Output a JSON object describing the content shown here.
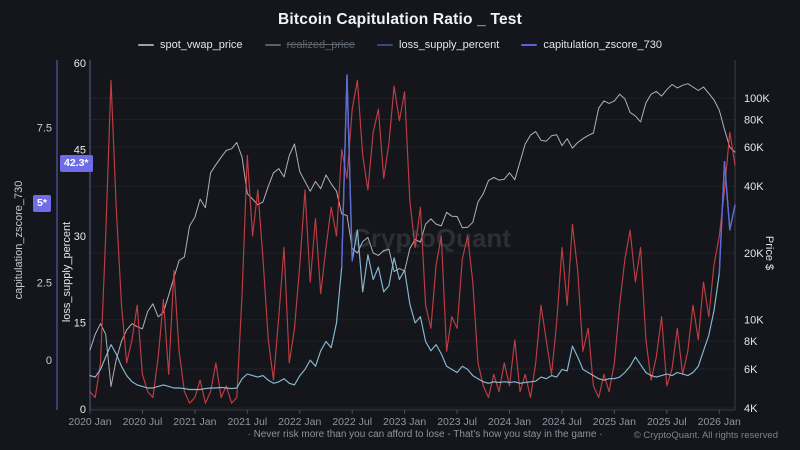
{
  "header": {
    "title": "Bitcoin Capitulation Ratio _ Test"
  },
  "watermark": "CryptoQuant",
  "footer": {
    "quote": "· Never risk more than you can afford to lose - That's how you stay in the game ·",
    "copyright": "© CryptoQuant. All rights reserved"
  },
  "chart_data": {
    "type": "line",
    "title": "Bitcoin Capitulation Ratio _ Test",
    "x_domain": [
      2020.0,
      2026.15
    ],
    "x_start": 2020.0,
    "x_step": 0.05,
    "x_ticks": [
      {
        "v": 2020.0,
        "label": "2020 Jan"
      },
      {
        "v": 2020.5,
        "label": "2020 Jul"
      },
      {
        "v": 2021.0,
        "label": "2021 Jan"
      },
      {
        "v": 2021.5,
        "label": "2021 Jul"
      },
      {
        "v": 2022.0,
        "label": "2022 Jan"
      },
      {
        "v": 2022.5,
        "label": "2022 Jul"
      },
      {
        "v": 2023.0,
        "label": "2023 Jan"
      },
      {
        "v": 2023.5,
        "label": "2023 Jul"
      },
      {
        "v": 2024.0,
        "label": "2024 Jan"
      },
      {
        "v": 2024.5,
        "label": "2024 Jul"
      },
      {
        "v": 2025.0,
        "label": "2025 Jan"
      },
      {
        "v": 2025.5,
        "label": "2025 Jul"
      },
      {
        "v": 2026.0,
        "label": "2026 Jan"
      }
    ],
    "axes": {
      "zscore": {
        "title": "capitulation_zscore_730",
        "side": "left-outer",
        "axis_color": "#565aa8",
        "ticks": [
          {
            "v": 0,
            "label": "0"
          },
          {
            "v": 2.5,
            "label": "2.5"
          },
          {
            "v": 7.5,
            "label": "7.5"
          }
        ],
        "current_value": 5,
        "current_label": "5*"
      },
      "loss": {
        "title": "loss_supply_percent",
        "side": "left-inner",
        "axis_color": "#4a5680",
        "ticks": [
          {
            "v": 0,
            "label": "0"
          },
          {
            "v": 15,
            "label": "15"
          },
          {
            "v": 30,
            "label": "30"
          },
          {
            "v": 45,
            "label": "45"
          },
          {
            "v": 60,
            "label": "60"
          }
        ],
        "current_value": 42.3,
        "current_label": "42.3*"
      },
      "price": {
        "title": "Price $",
        "side": "right",
        "scale": "log",
        "axis_color": "#3a3f48",
        "ticks": [
          {
            "v": 100,
            "label": "100K"
          },
          {
            "v": 80,
            "label": "80K"
          },
          {
            "v": 60,
            "label": "60K"
          },
          {
            "v": 40,
            "label": "40K"
          },
          {
            "v": 20,
            "label": "20K"
          },
          {
            "v": 10,
            "label": "10K"
          },
          {
            "v": 8,
            "label": "8K"
          },
          {
            "v": 6,
            "label": "6K"
          },
          {
            "v": 4,
            "label": "4K"
          }
        ]
      }
    },
    "series": [
      {
        "name": "spot_vwap_price",
        "axis": "price",
        "visible": true,
        "color": "#b4bac2",
        "legend_color": "#9aa1a9",
        "values": [
          7.3,
          8.6,
          9.6,
          8.6,
          5.0,
          6.6,
          8.0,
          9.0,
          9.6,
          9.3,
          9.1,
          10.9,
          11.8,
          10.3,
          10.8,
          12.9,
          15.5,
          18.5,
          19.2,
          26.5,
          29,
          35,
          32,
          46,
          50,
          54,
          58,
          59,
          63,
          54,
          37,
          35,
          33,
          34,
          40,
          46,
          48,
          44,
          55,
          62,
          46.5,
          42,
          38,
          42,
          39,
          45,
          41,
          38,
          30,
          29.5,
          21,
          20,
          22.5,
          23.5,
          20,
          19.5,
          20.5,
          20.8,
          16.5,
          17,
          16.6,
          21,
          23,
          22.4,
          27,
          28.5,
          27,
          26.5,
          30.5,
          29.3,
          29.2,
          26,
          26.1,
          27.5,
          34,
          37,
          42.5,
          43.8,
          42.6,
          43,
          46,
          42.8,
          51.5,
          62,
          68,
          70.5,
          64.5,
          63.8,
          67.5,
          68.3,
          61,
          65.5,
          59.4,
          63,
          65.5,
          67.8,
          69.5,
          90,
          97,
          94.5,
          97,
          104,
          99,
          86,
          83,
          78,
          95,
          104,
          107,
          102,
          109,
          115,
          111,
          114,
          116,
          112,
          108,
          112,
          105,
          98,
          88,
          72,
          60,
          57
        ]
      },
      {
        "name": "realized_price",
        "visible": false,
        "legend_color": "#59616c"
      },
      {
        "name": "loss_supply_percent",
        "axis": "loss",
        "visible": true,
        "color": "#c64046",
        "legend_color": "#3a4a78",
        "values": [
          3,
          2,
          8,
          30,
          57,
          35,
          18,
          8,
          12,
          18,
          6,
          3,
          2,
          9,
          19,
          6,
          24,
          10,
          3,
          1,
          2,
          5,
          1,
          3,
          8,
          2,
          4,
          1,
          2,
          20,
          44,
          30,
          38,
          26,
          12,
          5,
          16,
          28,
          8,
          14,
          25,
          38,
          22,
          33,
          20,
          28,
          35,
          30,
          45,
          40,
          52,
          57,
          44,
          38,
          48,
          52,
          40,
          46,
          56,
          50,
          55,
          36,
          28,
          35,
          18,
          14,
          25,
          30,
          10,
          16,
          14,
          26,
          30,
          22,
          8,
          4,
          2,
          6,
          3,
          8,
          4,
          12,
          3,
          6,
          2,
          8,
          18,
          12,
          6,
          15,
          28,
          18,
          32,
          24,
          10,
          14,
          4,
          2,
          6,
          3,
          8,
          18,
          26,
          31,
          22,
          28,
          12,
          5,
          9,
          16,
          4,
          7,
          14,
          6,
          10,
          18,
          12,
          22,
          16,
          25,
          30,
          38,
          48,
          42.3
        ]
      },
      {
        "name": "capitulation_zscore_730",
        "axis": "zscore",
        "visible": true,
        "color": "#8ec2dc",
        "legend_color": "#5d60d8",
        "spike_color": "#5e6ad6",
        "spike_threshold": 4.6,
        "values": [
          -0.5,
          -0.55,
          -0.3,
          0.1,
          0.5,
          0.2,
          -0.2,
          -0.5,
          -0.7,
          -0.8,
          -0.85,
          -0.9,
          -0.9,
          -0.85,
          -0.8,
          -0.85,
          -0.9,
          -0.9,
          -0.92,
          -0.95,
          -0.95,
          -0.95,
          -0.92,
          -0.9,
          -0.9,
          -0.88,
          -0.9,
          -0.92,
          -0.9,
          -0.6,
          -0.45,
          -0.5,
          -0.55,
          -0.5,
          -0.65,
          -0.75,
          -0.7,
          -0.6,
          -0.75,
          -0.8,
          -0.5,
          -0.3,
          0.0,
          -0.2,
          0.3,
          0.6,
          0.4,
          1.2,
          3.0,
          9.2,
          3.2,
          4.2,
          2.2,
          3.4,
          2.6,
          3.0,
          2.2,
          2.4,
          3.3,
          2.6,
          2.9,
          1.8,
          1.2,
          1.4,
          0.6,
          0.3,
          0.5,
          0.2,
          -0.2,
          -0.3,
          -0.4,
          -0.2,
          -0.3,
          -0.5,
          -0.6,
          -0.7,
          -0.75,
          -0.7,
          -0.72,
          -0.7,
          -0.72,
          -0.7,
          -0.75,
          -0.72,
          -0.7,
          -0.68,
          -0.55,
          -0.6,
          -0.5,
          -0.55,
          -0.3,
          -0.35,
          0.45,
          0.1,
          -0.3,
          -0.4,
          -0.5,
          -0.6,
          -0.65,
          -0.6,
          -0.6,
          -0.55,
          -0.4,
          -0.2,
          0.1,
          -0.15,
          -0.4,
          -0.5,
          -0.55,
          -0.5,
          -0.45,
          -0.5,
          -0.4,
          -0.45,
          -0.5,
          -0.4,
          -0.2,
          0.3,
          0.8,
          1.6,
          2.8,
          6.4,
          4.2,
          5.0
        ]
      }
    ]
  }
}
